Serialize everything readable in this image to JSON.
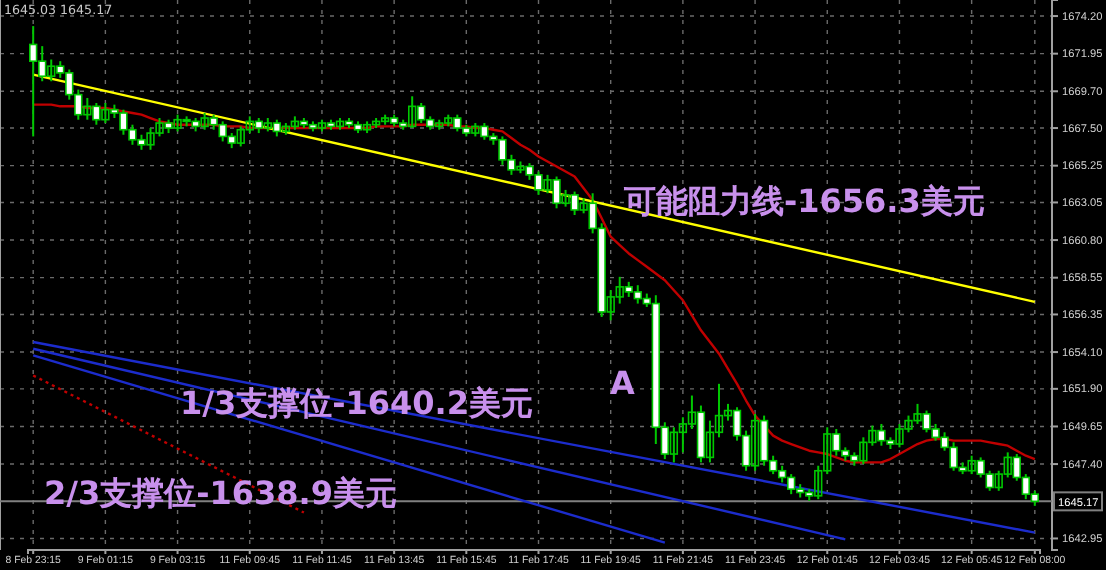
{
  "chart_data": {
    "type": "candlestick",
    "categories": [
      "8 Feb 23:15",
      null,
      null,
      null,
      null,
      null,
      null,
      null,
      "9 Feb 01:15",
      null,
      null,
      null,
      null,
      null,
      null,
      null,
      "9 Feb 03:15",
      null,
      null,
      null,
      null,
      null,
      null,
      null,
      "11 Feb 09:45",
      null,
      null,
      null,
      null,
      null,
      null,
      null,
      "11 Feb 11:45",
      null,
      null,
      null,
      null,
      null,
      null,
      null,
      "11 Feb 13:45",
      null,
      null,
      null,
      null,
      null,
      null,
      null,
      "11 Feb 15:45",
      null,
      null,
      null,
      null,
      null,
      null,
      null,
      "11 Feb 17:45",
      null,
      null,
      null,
      null,
      null,
      null,
      null,
      "11 Feb 19:45",
      null,
      null,
      null,
      null,
      null,
      null,
      null,
      "11 Feb 21:45",
      null,
      null,
      null,
      null,
      null,
      null,
      null,
      "11 Feb 23:45",
      null,
      null,
      null,
      null,
      null,
      null,
      null,
      "12 Feb 01:45",
      null,
      null,
      null,
      null,
      null,
      null,
      null,
      "12 Feb 03:45",
      null,
      null,
      null,
      null,
      null,
      null,
      null,
      "12 Feb 05:45",
      null,
      null,
      null,
      null,
      null,
      null,
      "12 Feb 08:00"
    ],
    "ohlc": [
      [
        1672.5,
        1673.6,
        1667.0,
        1671.5
      ],
      [
        1671.5,
        1672.4,
        1670.3,
        1670.6
      ],
      [
        1670.6,
        1671.6,
        1670.3,
        1671.2
      ],
      [
        1671.2,
        1671.5,
        1670.5,
        1670.8
      ],
      [
        1670.8,
        1671.0,
        1669.2,
        1669.5
      ],
      [
        1669.5,
        1669.8,
        1668.0,
        1668.3
      ],
      [
        1668.3,
        1669.3,
        1668.0,
        1668.8
      ],
      [
        1668.8,
        1669.0,
        1667.7,
        1668.0
      ],
      [
        1668.0,
        1669.0,
        1667.8,
        1668.6
      ],
      [
        1668.6,
        1668.9,
        1668.1,
        1668.4
      ],
      [
        1668.4,
        1668.6,
        1667.1,
        1667.4
      ],
      [
        1667.4,
        1667.7,
        1666.5,
        1666.8
      ],
      [
        1666.8,
        1667.1,
        1666.2,
        1666.5
      ],
      [
        1666.5,
        1667.5,
        1666.2,
        1667.2
      ],
      [
        1667.2,
        1668.1,
        1667.0,
        1667.8
      ],
      [
        1667.8,
        1668.0,
        1667.2,
        1667.5
      ],
      [
        1667.5,
        1668.3,
        1667.3,
        1668.0
      ],
      [
        1668.0,
        1668.2,
        1667.6,
        1667.9
      ],
      [
        1667.9,
        1668.1,
        1667.3,
        1667.6
      ],
      [
        1667.6,
        1668.4,
        1667.4,
        1668.1
      ],
      [
        1668.1,
        1668.3,
        1667.4,
        1667.7
      ],
      [
        1667.7,
        1667.9,
        1666.7,
        1667.0
      ],
      [
        1667.0,
        1667.2,
        1666.3,
        1666.6
      ],
      [
        1666.6,
        1667.6,
        1666.4,
        1667.4
      ],
      [
        1667.4,
        1668.2,
        1667.2,
        1667.9
      ],
      [
        1667.9,
        1668.1,
        1667.2,
        1667.5
      ],
      [
        1667.5,
        1668.1,
        1667.3,
        1667.8
      ],
      [
        1667.8,
        1668.0,
        1667.0,
        1667.3
      ],
      [
        1667.3,
        1667.8,
        1667.1,
        1667.6
      ],
      [
        1667.6,
        1668.2,
        1667.4,
        1667.9
      ],
      [
        1667.9,
        1668.1,
        1667.5,
        1667.7
      ],
      [
        1667.7,
        1667.9,
        1667.3,
        1667.5
      ],
      [
        1667.5,
        1668.0,
        1667.3,
        1667.8
      ],
      [
        1667.8,
        1668.0,
        1667.4,
        1667.6
      ],
      [
        1667.6,
        1668.1,
        1667.4,
        1667.9
      ],
      [
        1667.9,
        1668.1,
        1667.5,
        1667.7
      ],
      [
        1667.7,
        1667.9,
        1667.2,
        1667.4
      ],
      [
        1667.4,
        1667.9,
        1667.2,
        1667.7
      ],
      [
        1667.7,
        1668.1,
        1667.5,
        1667.9
      ],
      [
        1667.9,
        1668.3,
        1667.7,
        1668.1
      ],
      [
        1668.1,
        1668.3,
        1667.6,
        1667.8
      ],
      [
        1667.8,
        1668.0,
        1667.4,
        1667.6
      ],
      [
        1667.6,
        1669.4,
        1667.5,
        1668.8
      ],
      [
        1668.8,
        1669.0,
        1667.8,
        1668.0
      ],
      [
        1668.0,
        1668.2,
        1667.4,
        1667.6
      ],
      [
        1667.6,
        1668.0,
        1667.4,
        1667.8
      ],
      [
        1667.8,
        1668.3,
        1667.6,
        1668.1
      ],
      [
        1668.1,
        1668.3,
        1667.3,
        1667.5
      ],
      [
        1667.5,
        1667.7,
        1667.0,
        1667.2
      ],
      [
        1667.2,
        1667.8,
        1667.0,
        1667.6
      ],
      [
        1667.6,
        1667.8,
        1666.8,
        1667.0
      ],
      [
        1667.0,
        1667.2,
        1666.5,
        1666.8
      ],
      [
        1666.8,
        1667.0,
        1665.3,
        1665.6
      ],
      [
        1665.6,
        1665.9,
        1664.7,
        1665.0
      ],
      [
        1665.0,
        1665.5,
        1664.8,
        1665.2
      ],
      [
        1665.2,
        1665.4,
        1664.4,
        1664.7
      ],
      [
        1664.7,
        1664.9,
        1663.5,
        1663.8
      ],
      [
        1663.8,
        1664.7,
        1663.6,
        1664.4
      ],
      [
        1664.4,
        1664.6,
        1662.7,
        1663.0
      ],
      [
        1663.0,
        1663.8,
        1662.8,
        1663.5
      ],
      [
        1663.5,
        1663.7,
        1662.3,
        1662.6
      ],
      [
        1662.6,
        1663.3,
        1662.4,
        1663.0
      ],
      [
        1663.0,
        1663.6,
        1661.2,
        1661.5
      ],
      [
        1661.5,
        1661.8,
        1656.2,
        1656.5
      ],
      [
        1656.5,
        1657.8,
        1656.0,
        1657.4
      ],
      [
        1657.4,
        1658.6,
        1657.0,
        1658.0
      ],
      [
        1658.0,
        1658.3,
        1657.4,
        1657.7
      ],
      [
        1657.7,
        1658.1,
        1657.0,
        1657.3
      ],
      [
        1657.3,
        1657.6,
        1656.8,
        1657.0
      ],
      [
        1657.0,
        1657.5,
        1648.6,
        1649.6
      ],
      [
        1649.6,
        1649.9,
        1647.7,
        1648.0
      ],
      [
        1648.0,
        1649.6,
        1647.5,
        1649.3
      ],
      [
        1649.3,
        1650.2,
        1648.1,
        1649.8
      ],
      [
        1649.8,
        1651.5,
        1649.5,
        1650.5
      ],
      [
        1650.5,
        1650.9,
        1647.5,
        1647.8
      ],
      [
        1647.8,
        1650.0,
        1647.5,
        1649.3
      ],
      [
        1649.3,
        1652.2,
        1649.0,
        1650.3
      ],
      [
        1650.3,
        1651.0,
        1650.0,
        1650.6
      ],
      [
        1650.6,
        1650.8,
        1648.8,
        1649.1
      ],
      [
        1649.1,
        1649.4,
        1647.0,
        1647.3
      ],
      [
        1647.3,
        1650.4,
        1647.0,
        1650.0
      ],
      [
        1650.0,
        1650.3,
        1647.3,
        1647.6
      ],
      [
        1647.6,
        1647.9,
        1646.8,
        1647.0
      ],
      [
        1647.0,
        1647.3,
        1646.3,
        1646.6
      ],
      [
        1646.6,
        1646.8,
        1645.6,
        1645.9
      ],
      [
        1645.9,
        1646.2,
        1645.4,
        1645.7
      ],
      [
        1645.7,
        1645.9,
        1645.2,
        1645.5
      ],
      [
        1645.5,
        1647.3,
        1645.3,
        1647.0
      ],
      [
        1647.0,
        1649.6,
        1646.8,
        1649.2
      ],
      [
        1649.2,
        1649.5,
        1647.9,
        1648.2
      ],
      [
        1648.2,
        1648.4,
        1647.6,
        1647.9
      ],
      [
        1647.9,
        1648.1,
        1647.3,
        1647.6
      ],
      [
        1647.6,
        1649.0,
        1647.4,
        1648.7
      ],
      [
        1648.7,
        1649.7,
        1648.5,
        1649.4
      ],
      [
        1649.4,
        1649.8,
        1648.5,
        1648.8
      ],
      [
        1648.8,
        1649.0,
        1648.3,
        1648.6
      ],
      [
        1648.6,
        1649.8,
        1648.4,
        1649.5
      ],
      [
        1649.5,
        1650.3,
        1649.3,
        1650.0
      ],
      [
        1650.0,
        1651.0,
        1649.8,
        1650.4
      ],
      [
        1650.4,
        1650.6,
        1649.3,
        1649.5
      ],
      [
        1649.5,
        1649.8,
        1648.8,
        1649.0
      ],
      [
        1649.0,
        1649.3,
        1648.2,
        1648.4
      ],
      [
        1648.4,
        1648.7,
        1647.0,
        1647.2
      ],
      [
        1647.2,
        1647.5,
        1646.8,
        1647.0
      ],
      [
        1647.0,
        1647.9,
        1646.8,
        1647.6
      ],
      [
        1647.6,
        1647.8,
        1646.6,
        1646.8
      ],
      [
        1646.8,
        1647.0,
        1645.8,
        1646.0
      ],
      [
        1646.0,
        1647.0,
        1645.8,
        1646.8
      ],
      [
        1646.8,
        1648.1,
        1646.6,
        1647.8
      ],
      [
        1647.8,
        1648.0,
        1646.4,
        1646.6
      ],
      [
        1646.6,
        1646.8,
        1645.3,
        1645.6
      ],
      [
        1645.6,
        1645.8,
        1644.9,
        1645.17
      ]
    ],
    "series": [
      {
        "type": "line",
        "color": "#c00000",
        "values": [
          1668.9,
          1668.9,
          1668.9,
          1668.8,
          1668.8,
          1668.8,
          1668.7,
          1668.7,
          1668.7,
          1668.6,
          1668.5,
          1668.4,
          1668.3,
          1668.1,
          1667.9,
          1667.8,
          1667.7,
          1667.7,
          1667.7,
          1667.7,
          1667.7,
          1667.6,
          1667.6,
          1667.6,
          1667.5,
          1667.5,
          1667.5,
          1667.5,
          1667.5,
          1667.5,
          1667.5,
          1667.5,
          1667.5,
          1667.5,
          1667.5,
          1667.5,
          1667.5,
          1667.5,
          1667.6,
          1667.6,
          1667.6,
          1667.6,
          1667.7,
          1667.7,
          1667.7,
          1667.7,
          1667.7,
          1667.6,
          1667.6,
          1667.5,
          1667.5,
          1667.4,
          1667.3,
          1666.9,
          1666.5,
          1666.2,
          1665.8,
          1665.5,
          1665.2,
          1664.9,
          1664.6,
          1663.9,
          1663.2,
          1662.1,
          1661.0,
          1660.5,
          1660.0,
          1659.6,
          1659.2,
          1658.8,
          1658.4,
          1657.8,
          1657.2,
          1656.3,
          1655.4,
          1654.7,
          1654.0,
          1653.1,
          1652.2,
          1651.2,
          1650.3,
          1649.7,
          1649.1,
          1648.8,
          1648.6,
          1648.4,
          1648.2,
          1648.1,
          1648.0,
          1647.8,
          1647.6,
          1647.5,
          1647.5,
          1647.5,
          1647.5,
          1647.7,
          1648.0,
          1648.3,
          1648.6,
          1648.8,
          1648.9,
          1648.9,
          1648.8,
          1648.8,
          1648.8,
          1648.8,
          1648.7,
          1648.6,
          1648.5,
          1648.2,
          1647.9,
          1647.7
        ]
      },
      {
        "type": "line",
        "color": "#ffff00",
        "values": [
          1670.7,
          null,
          null,
          null,
          null,
          null,
          null,
          null,
          null,
          null,
          null,
          null,
          null,
          null,
          null,
          null,
          null,
          null,
          null,
          null,
          null,
          null,
          null,
          null,
          null,
          null,
          null,
          null,
          null,
          null,
          null,
          null,
          null,
          null,
          null,
          null,
          null,
          null,
          null,
          null,
          null,
          null,
          null,
          null,
          null,
          null,
          null,
          null,
          null,
          null,
          null,
          null,
          null,
          null,
          null,
          null,
          null,
          null,
          null,
          null,
          null,
          null,
          null,
          null,
          null,
          null,
          null,
          null,
          null,
          null,
          null,
          null,
          null,
          null,
          null,
          null,
          null,
          null,
          null,
          null,
          null,
          null,
          null,
          null,
          null,
          null,
          null,
          null,
          null,
          null,
          null,
          null,
          null,
          null,
          null,
          null,
          null,
          null,
          null,
          null,
          null,
          null,
          null,
          null,
          null,
          null,
          null,
          null,
          null,
          null,
          null,
          1657.1
        ]
      },
      {
        "type": "line",
        "color": "#1c2ccc",
        "values": [
          1654.7,
          null,
          null,
          null,
          null,
          null,
          null,
          null,
          null,
          null,
          null,
          null,
          null,
          null,
          null,
          null,
          null,
          null,
          null,
          null,
          null,
          null,
          null,
          null,
          null,
          null,
          null,
          null,
          null,
          null,
          null,
          null,
          null,
          null,
          null,
          null,
          null,
          null,
          null,
          null,
          null,
          null,
          null,
          null,
          null,
          null,
          null,
          null,
          null,
          null,
          null,
          null,
          null,
          null,
          null,
          null,
          null,
          null,
          null,
          null,
          null,
          null,
          null,
          null,
          null,
          null,
          null,
          null,
          null,
          null,
          null,
          null,
          null,
          null,
          null,
          null,
          null,
          null,
          null,
          null,
          null,
          null,
          null,
          null,
          null,
          null,
          null,
          null,
          null,
          null,
          null,
          null,
          null,
          null,
          null,
          null,
          null,
          null,
          null,
          null,
          null,
          null,
          null,
          null,
          null,
          null,
          null,
          null,
          null,
          null,
          null,
          1643.3
        ]
      },
      {
        "type": "line",
        "color": "#1c2ccc",
        "values": [
          1654.3,
          null,
          null,
          null,
          null,
          null,
          null,
          null,
          null,
          null,
          null,
          null,
          null,
          null,
          null,
          null,
          null,
          null,
          null,
          null,
          null,
          null,
          null,
          null,
          null,
          null,
          null,
          null,
          null,
          null,
          null,
          null,
          null,
          null,
          null,
          null,
          null,
          null,
          null,
          null,
          null,
          null,
          null,
          null,
          null,
          null,
          null,
          null,
          null,
          null,
          null,
          null,
          null,
          null,
          null,
          null,
          null,
          null,
          null,
          null,
          null,
          null,
          null,
          null,
          null,
          null,
          null,
          null,
          null,
          null,
          null,
          null,
          null,
          null,
          null,
          null,
          null,
          null,
          null,
          null,
          null,
          null,
          null,
          null,
          null,
          null,
          null,
          null,
          null,
          null,
          1642.9,
          null,
          null,
          null,
          null,
          null,
          null,
          null,
          null,
          null,
          null,
          null,
          null,
          null,
          null,
          null,
          null,
          null,
          null,
          null,
          null,
          null
        ]
      },
      {
        "type": "line",
        "color": "#1c2ccc",
        "values": [
          1653.9,
          null,
          null,
          null,
          null,
          null,
          null,
          null,
          null,
          null,
          null,
          null,
          null,
          null,
          null,
          null,
          null,
          null,
          null,
          null,
          null,
          null,
          null,
          null,
          null,
          null,
          null,
          null,
          null,
          null,
          null,
          null,
          null,
          null,
          null,
          null,
          null,
          null,
          null,
          null,
          null,
          null,
          null,
          null,
          null,
          null,
          null,
          null,
          null,
          null,
          null,
          null,
          null,
          null,
          null,
          null,
          null,
          null,
          null,
          null,
          null,
          null,
          null,
          null,
          null,
          null,
          null,
          null,
          null,
          null,
          1642.7,
          null,
          null,
          null,
          null,
          null,
          null,
          null,
          null,
          null,
          null,
          null,
          null,
          null,
          null,
          null,
          null,
          null,
          null,
          null,
          null,
          null,
          null,
          null,
          null,
          null,
          null,
          null,
          null,
          null,
          null,
          null,
          null,
          null,
          null,
          null,
          null,
          null,
          null,
          null,
          null,
          null
        ]
      },
      {
        "type": "line",
        "color": "#c00000",
        "line_style": "dotted",
        "values": [
          1652.7,
          null,
          null,
          null,
          null,
          null,
          null,
          null,
          null,
          null,
          null,
          null,
          null,
          null,
          null,
          null,
          null,
          null,
          null,
          null,
          null,
          null,
          null,
          null,
          null,
          null,
          null,
          null,
          null,
          null,
          1644.5,
          null,
          null,
          null,
          null,
          null,
          null,
          null,
          null,
          null,
          null,
          null,
          null,
          null,
          null,
          null,
          null,
          null,
          null,
          null,
          null,
          null,
          null,
          null,
          null,
          null,
          null,
          null,
          null,
          null,
          null,
          null,
          null,
          null,
          null,
          null,
          null,
          null,
          null,
          null,
          null,
          null,
          null,
          null,
          null,
          null,
          null,
          null,
          null,
          null,
          null,
          null,
          null,
          null,
          null,
          null,
          null,
          null,
          null,
          null,
          null,
          null,
          null,
          null,
          null,
          null,
          null,
          null,
          null,
          null,
          null,
          null,
          null,
          null,
          null,
          null,
          null,
          null,
          null,
          null,
          null,
          null
        ]
      }
    ],
    "ylim": [
      1642.26,
      1675.16
    ],
    "yticks": [
      {
        "value": 1674.2,
        "label": "1674.20"
      },
      1671.95,
      {
        "value": 1669.7,
        "label": "1669.70"
      },
      {
        "value": 1667.5,
        "label": "1667.50"
      },
      1665.25,
      1663.05,
      {
        "value": 1660.8,
        "label": "1660.80"
      },
      1658.55,
      1656.35,
      {
        "value": 1654.1,
        "label": "1654.10"
      },
      {
        "value": 1651.9,
        "label": "1651.90"
      },
      1649.65,
      {
        "value": 1647.4,
        "label": "1647.40"
      },
      1642.95
    ],
    "ref_lines": [
      {
        "axis": "y",
        "value": 1645.17,
        "label": "1645.17",
        "color": "#808080"
      }
    ],
    "grid": true,
    "annotations": [
      "1645.03 1645.17",
      "可能阻力线-1656.3美元",
      "1/3支撑位-1640.2美元",
      "2/3支撑位-1638.9美元",
      "A"
    ]
  }
}
